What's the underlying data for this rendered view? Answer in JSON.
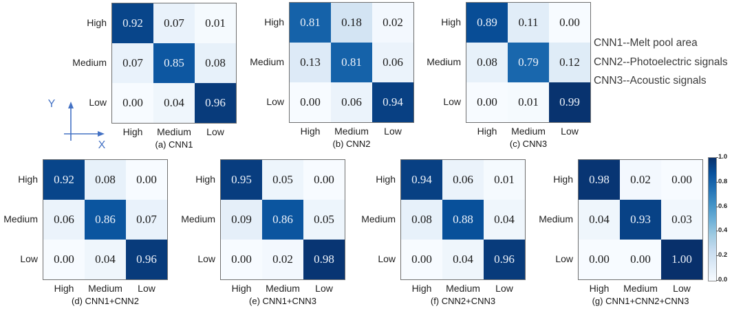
{
  "figure": {
    "legend": {
      "lines": [
        "CNN1--Melt pool area",
        "CNN2--Photoelectric signals",
        "CNN3--Acoustic signals"
      ]
    },
    "axes_icon": {
      "x_label": "X",
      "y_label": "Y",
      "color": "#4472c4"
    },
    "colorbar": {
      "ticks": [
        "1.0",
        "0.8",
        "0.6",
        "0.4",
        "0.2",
        "0.0"
      ],
      "colormap": "Blues",
      "min": 0.0,
      "max": 1.0
    }
  },
  "chart_data": [
    {
      "type": "heatmap",
      "caption": "(a) CNN1",
      "x_categories": [
        "High",
        "Medium",
        "Low"
      ],
      "y_categories": [
        "High",
        "Medium",
        "Low"
      ],
      "values": [
        [
          0.92,
          0.07,
          0.01
        ],
        [
          0.07,
          0.85,
          0.08
        ],
        [
          0.0,
          0.04,
          0.96
        ]
      ],
      "vmin": 0,
      "vmax": 1,
      "colormap": "Blues"
    },
    {
      "type": "heatmap",
      "caption": "(b) CNN2",
      "x_categories": [
        "High",
        "Medium",
        "Low"
      ],
      "y_categories": [
        "High",
        "Medium",
        "Low"
      ],
      "values": [
        [
          0.81,
          0.18,
          0.02
        ],
        [
          0.13,
          0.81,
          0.06
        ],
        [
          0.0,
          0.06,
          0.94
        ]
      ],
      "vmin": 0,
      "vmax": 1,
      "colormap": "Blues"
    },
    {
      "type": "heatmap",
      "caption": "(c) CNN3",
      "x_categories": [
        "High",
        "Medium",
        "Low"
      ],
      "y_categories": [
        "High",
        "Medium",
        "Low"
      ],
      "values": [
        [
          0.89,
          0.11,
          0.0
        ],
        [
          0.08,
          0.79,
          0.12
        ],
        [
          0.0,
          0.01,
          0.99
        ]
      ],
      "vmin": 0,
      "vmax": 1,
      "colormap": "Blues"
    },
    {
      "type": "heatmap",
      "caption": "(d) CNN1+CNN2",
      "x_categories": [
        "High",
        "Medium",
        "Low"
      ],
      "y_categories": [
        "High",
        "Medium",
        "Low"
      ],
      "values": [
        [
          0.92,
          0.08,
          0.0
        ],
        [
          0.06,
          0.86,
          0.07
        ],
        [
          0.0,
          0.04,
          0.96
        ]
      ],
      "vmin": 0,
      "vmax": 1,
      "colormap": "Blues"
    },
    {
      "type": "heatmap",
      "caption": "(e) CNN1+CNN3",
      "x_categories": [
        "High",
        "Medium",
        "Low"
      ],
      "y_categories": [
        "High",
        "Medium",
        "Low"
      ],
      "values": [
        [
          0.95,
          0.05,
          0.0
        ],
        [
          0.09,
          0.86,
          0.05
        ],
        [
          0.0,
          0.02,
          0.98
        ]
      ],
      "vmin": 0,
      "vmax": 1,
      "colormap": "Blues"
    },
    {
      "type": "heatmap",
      "caption": "(f) CNN2+CNN3",
      "x_categories": [
        "High",
        "Medium",
        "Low"
      ],
      "y_categories": [
        "High",
        "Medium",
        "Low"
      ],
      "values": [
        [
          0.94,
          0.06,
          0.01
        ],
        [
          0.08,
          0.88,
          0.04
        ],
        [
          0.0,
          0.04,
          0.96
        ]
      ],
      "vmin": 0,
      "vmax": 1,
      "colormap": "Blues"
    },
    {
      "type": "heatmap",
      "caption": "(g) CNN1+CNN2+CNN3",
      "x_categories": [
        "High",
        "Medium",
        "Low"
      ],
      "y_categories": [
        "High",
        "Medium",
        "Low"
      ],
      "values": [
        [
          0.98,
          0.02,
          0.0
        ],
        [
          0.04,
          0.93,
          0.03
        ],
        [
          0.0,
          0.0,
          1.0
        ]
      ],
      "vmin": 0,
      "vmax": 1,
      "colormap": "Blues"
    }
  ]
}
